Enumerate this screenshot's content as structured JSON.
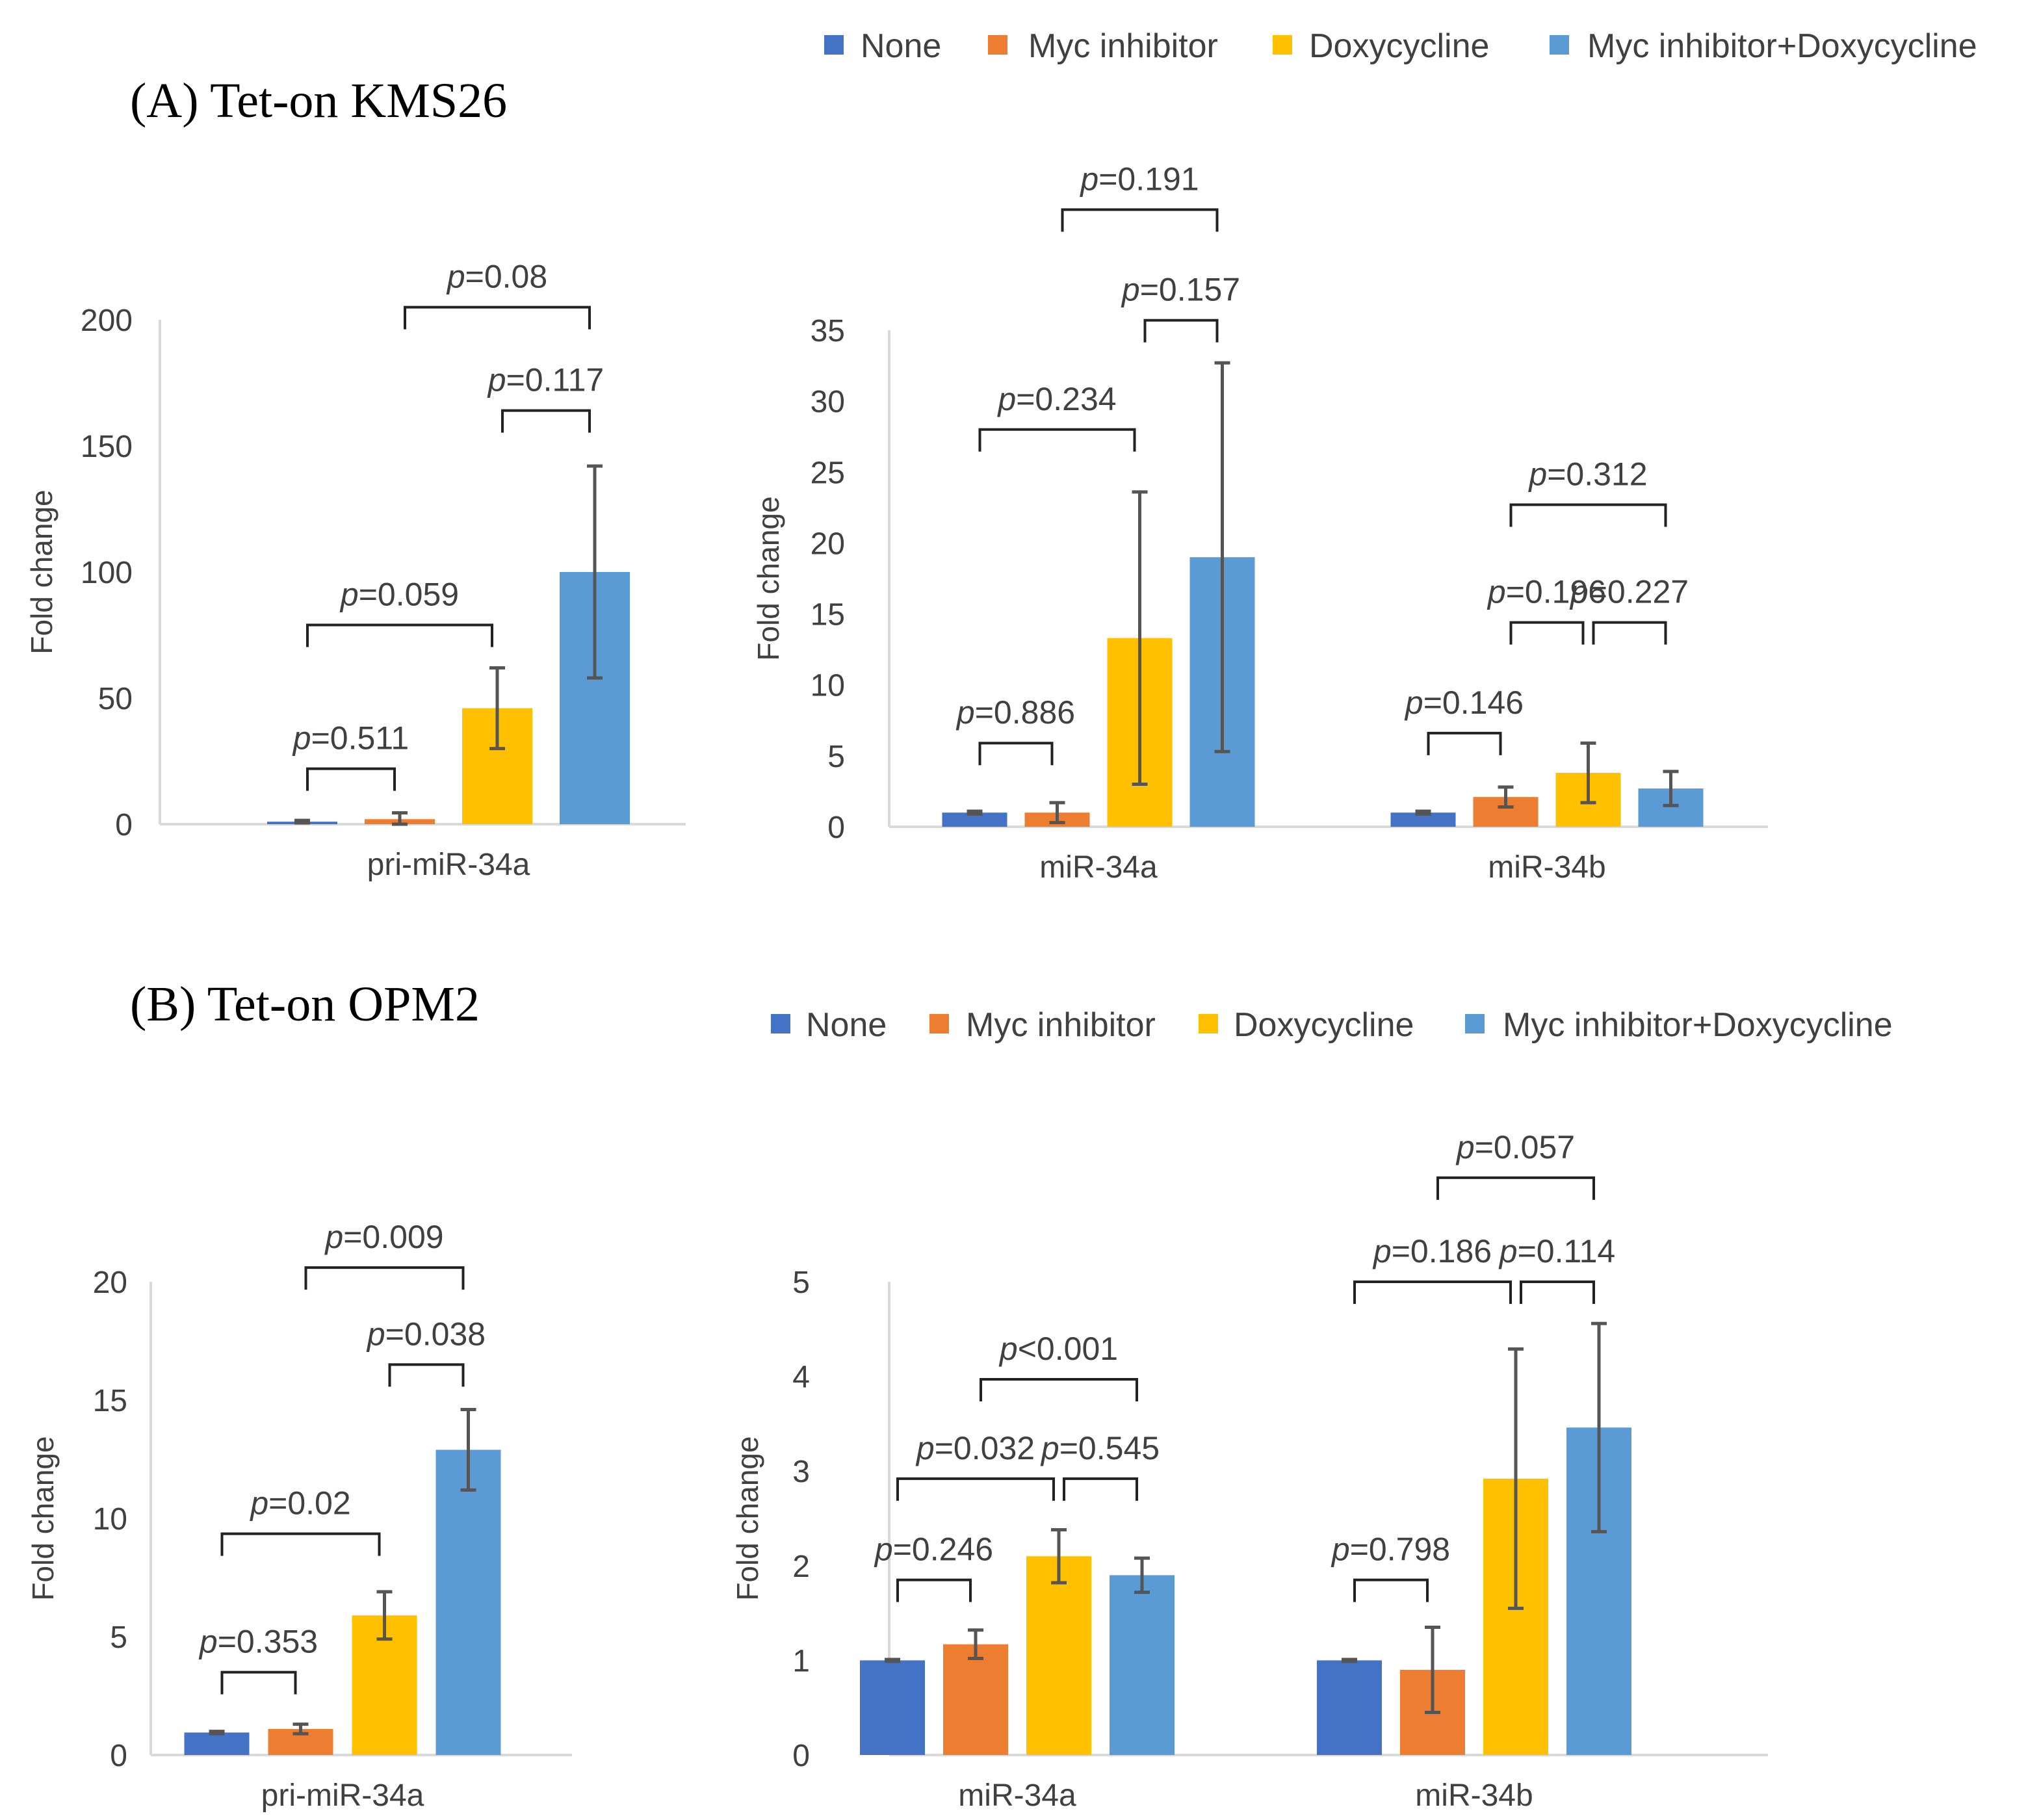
{
  "panels": {
    "A": {
      "title": "(A) Tet-on KMS26"
    },
    "B": {
      "title": "(B) Tet-on OPM2"
    }
  },
  "legend": {
    "entries": [
      "None",
      "Myc inhibitor",
      "Doxycycline",
      "Myc inhibitor+Doxycycline"
    ]
  },
  "colors": {
    "None": "#4472C4",
    "Myc inhibitor": "#ED7D31",
    "Doxycycline": "#FFC000",
    "Myc inhibitor+Doxycycline": "#5B9BD5",
    "axis": "#d9d9d9",
    "text": "#404040",
    "errorbar": "#555555",
    "bracket": "#222222"
  },
  "chart_data": [
    {
      "id": "A1",
      "panel": "A",
      "type": "bar",
      "ylabel": "Fold change",
      "ylim": [
        0,
        200
      ],
      "yticks": [
        0,
        50,
        100,
        150,
        200
      ],
      "series": [
        "None",
        "Myc inhibitor",
        "Doxycycline",
        "Myc inhibitor+Doxycycline"
      ],
      "groups": [
        {
          "label": "pri-miR-34a",
          "values": [
            1,
            2,
            46,
            100
          ],
          "errors": [
            0.5,
            2.5,
            16,
            42
          ]
        }
      ],
      "comparisons": [
        {
          "group": 0,
          "from": 0,
          "to": 1,
          "label": "p=0.511",
          "y": 22
        },
        {
          "group": 0,
          "from": 0,
          "to": 2,
          "label": "p=0.059",
          "y": 79
        },
        {
          "group": 0,
          "from": 2,
          "to": 3,
          "label": "p=0.117",
          "y": 164
        },
        {
          "group": 0,
          "from": 1,
          "to": 3,
          "label": "p=0.08",
          "y": 205
        }
      ]
    },
    {
      "id": "A2",
      "panel": "A",
      "type": "bar",
      "ylabel": "Fold change",
      "ylim": [
        0,
        35
      ],
      "yticks": [
        0,
        5,
        10,
        15,
        20,
        25,
        30,
        35
      ],
      "series": [
        "None",
        "Myc inhibitor",
        "Doxycycline",
        "Myc inhibitor+Doxycycline"
      ],
      "groups": [
        {
          "label": "miR-34a",
          "values": [
            1,
            1,
            13.3,
            19
          ],
          "errors": [
            0.1,
            0.7,
            10.3,
            13.7
          ]
        },
        {
          "label": "miR-34b",
          "values": [
            1,
            2.1,
            3.8,
            2.7
          ],
          "errors": [
            0.1,
            0.7,
            2.1,
            1.2
          ]
        }
      ],
      "comparisons": [
        {
          "group": 0,
          "from": 0,
          "to": 1,
          "label": "p=0.886",
          "y": 5.9
        },
        {
          "group": 0,
          "from": 0,
          "to": 2,
          "label": "p=0.234",
          "y": 28
        },
        {
          "group": 0,
          "from": 2,
          "to": 3,
          "label": "p=0.157",
          "y": 35.7
        },
        {
          "group": 0,
          "from": 1,
          "to": 3,
          "label": "p=0.191",
          "y": 43.5
        },
        {
          "group": 1,
          "from": 0,
          "to": 1,
          "label": "p=0.146",
          "y": 6.6
        },
        {
          "group": 1,
          "from": 1,
          "to": 2,
          "label": "p=0.196",
          "y": 14.4
        },
        {
          "group": 1,
          "from": 2,
          "to": 3,
          "label": "p=0.227",
          "y": 14.4
        },
        {
          "group": 1,
          "from": 1,
          "to": 3,
          "label": "p=0.312",
          "y": 22.7
        }
      ]
    },
    {
      "id": "B1",
      "panel": "B",
      "type": "bar",
      "ylabel": "Fold change",
      "ylim": [
        0,
        20
      ],
      "yticks": [
        0,
        5,
        10,
        15,
        20
      ],
      "series": [
        "None",
        "Myc inhibitor",
        "Doxycycline",
        "Myc inhibitor+Doxycycline"
      ],
      "groups": [
        {
          "label": "pri-miR-34a",
          "values": [
            0.95,
            1.1,
            5.9,
            12.9
          ],
          "errors": [
            0.05,
            0.2,
            1,
            1.7
          ]
        }
      ],
      "comparisons": [
        {
          "group": 0,
          "from": 0,
          "to": 1,
          "label": "p=0.353",
          "y": 3.5
        },
        {
          "group": 0,
          "from": 0,
          "to": 2,
          "label": "p=0.02",
          "y": 9.35
        },
        {
          "group": 0,
          "from": 2,
          "to": 3,
          "label": "p=0.038",
          "y": 16.5
        },
        {
          "group": 0,
          "from": 1,
          "to": 3,
          "label": "p=0.009",
          "y": 20.6
        }
      ]
    },
    {
      "id": "B2",
      "panel": "B",
      "type": "bar",
      "ylabel": "Fold change",
      "ylim": [
        0,
        5
      ],
      "yticks": [
        0,
        1,
        2,
        3,
        4,
        5
      ],
      "series": [
        "None",
        "Myc inhibitor",
        "Doxycycline",
        "Myc inhibitor+Doxycycline"
      ],
      "groups": [
        {
          "label": "miR-34a",
          "values": [
            1,
            1.17,
            2.1,
            1.9
          ],
          "errors": [
            0.01,
            0.15,
            0.28,
            0.18
          ]
        },
        {
          "label": "miR-34b",
          "values": [
            1,
            0.9,
            2.92,
            3.46
          ],
          "errors": [
            0.01,
            0.45,
            1.37,
            1.1
          ]
        }
      ],
      "comparisons": [
        {
          "group": 0,
          "from": 0,
          "to": 1,
          "label": "p=0.246",
          "y": 1.85
        },
        {
          "group": 0,
          "from": 0,
          "to": 2,
          "label": "p=0.032",
          "y": 2.92
        },
        {
          "group": 0,
          "from": 2,
          "to": 3,
          "label": "p=0.545",
          "y": 2.92
        },
        {
          "group": 0,
          "from": 1,
          "to": 3,
          "label": "p<0.001",
          "y": 3.97
        },
        {
          "group": 1,
          "from": 0,
          "to": 1,
          "label": "p=0.798",
          "y": 1.85
        },
        {
          "group": 1,
          "from": 0,
          "to": 2,
          "label": "p=0.186",
          "y": 5
        },
        {
          "group": 1,
          "from": 2,
          "to": 3,
          "label": "p=0.114",
          "y": 5
        },
        {
          "group": 1,
          "from": 1,
          "to": 3,
          "label": "p=0.057",
          "y": 6.1
        }
      ]
    }
  ]
}
